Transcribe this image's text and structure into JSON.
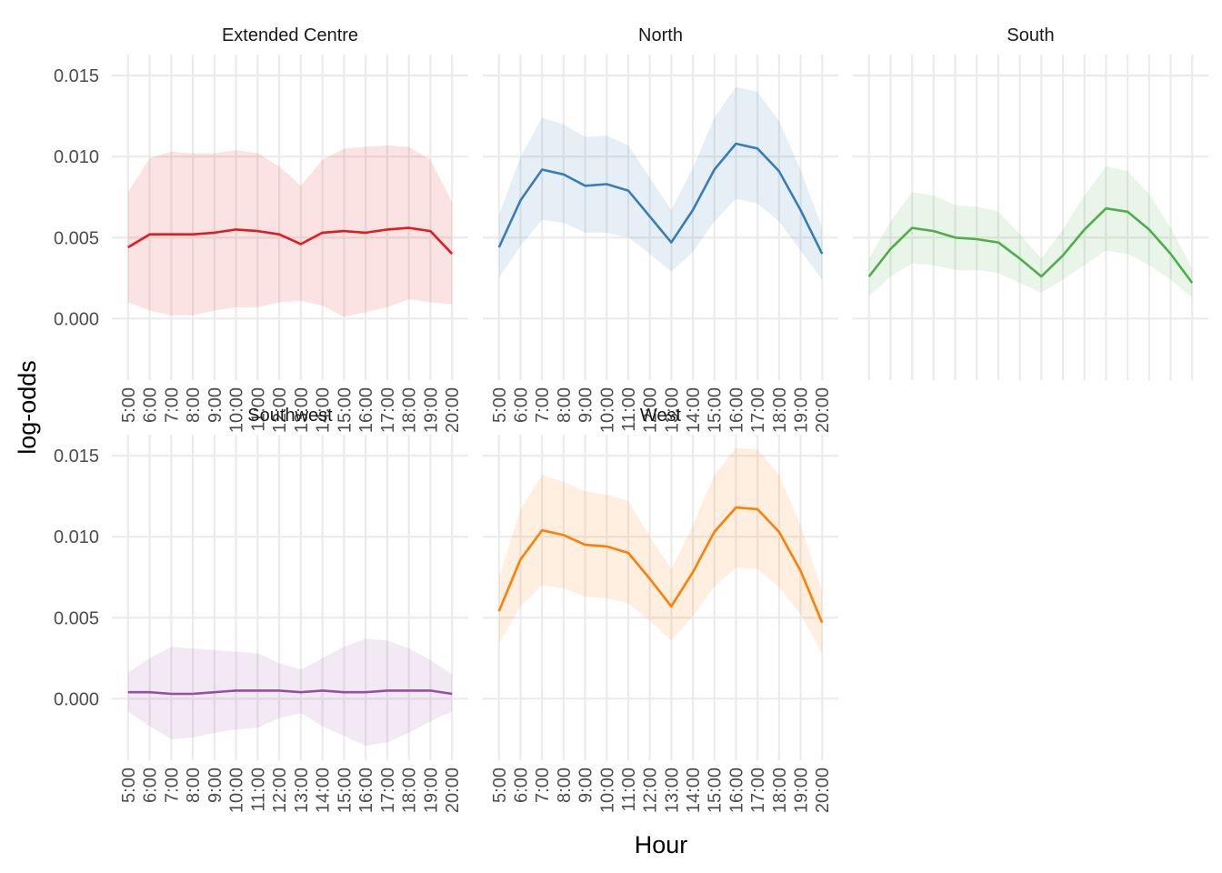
{
  "chart_data": {
    "type": "line",
    "subtype": "faceted line with confidence ribbons",
    "xlabel": "Hour",
    "ylabel": "log-odds",
    "x": [
      "5:00",
      "6:00",
      "7:00",
      "8:00",
      "9:00",
      "10:00",
      "11:00",
      "12:00",
      "13:00",
      "14:00",
      "15:00",
      "16:00",
      "17:00",
      "18:00",
      "19:00",
      "20:00"
    ],
    "ylim": [
      -0.0038,
      0.0163
    ],
    "yticks": [
      0.0,
      0.005,
      0.01,
      0.015
    ],
    "ytick_labels": [
      "0.000",
      "0.005",
      "0.010",
      "0.015"
    ],
    "grid": true,
    "legend": "none",
    "series": [
      {
        "name": "Extended Centre",
        "color": "#e41a1c",
        "values": [
          0.0044,
          0.0052,
          0.0052,
          0.0052,
          0.0053,
          0.0055,
          0.0054,
          0.0052,
          0.0046,
          0.0053,
          0.0054,
          0.0053,
          0.0055,
          0.0056,
          0.0054,
          0.004
        ],
        "lower": [
          0.001,
          0.0005,
          0.0002,
          0.0002,
          0.0005,
          0.0007,
          0.0007,
          0.001,
          0.0011,
          0.0008,
          0.0001,
          0.0004,
          0.0007,
          0.0012,
          0.001,
          0.0009
        ],
        "upper": [
          0.0078,
          0.0099,
          0.0103,
          0.0102,
          0.0102,
          0.0104,
          0.0102,
          0.0094,
          0.0082,
          0.0098,
          0.0105,
          0.0106,
          0.0107,
          0.0106,
          0.0098,
          0.0072
        ]
      },
      {
        "name": "North",
        "color": "#377eb8",
        "values": [
          0.0044,
          0.0073,
          0.0092,
          0.0089,
          0.0082,
          0.0083,
          0.0079,
          0.0063,
          0.0047,
          0.0067,
          0.0092,
          0.0108,
          0.0105,
          0.0091,
          0.0067,
          0.004
        ],
        "lower": [
          0.0025,
          0.0045,
          0.0061,
          0.0059,
          0.0053,
          0.0053,
          0.005,
          0.004,
          0.0029,
          0.0041,
          0.006,
          0.0074,
          0.0071,
          0.006,
          0.0042,
          0.0024
        ],
        "upper": [
          0.0064,
          0.01,
          0.0124,
          0.012,
          0.0112,
          0.0113,
          0.0107,
          0.0087,
          0.0067,
          0.0093,
          0.0124,
          0.0143,
          0.014,
          0.0122,
          0.0092,
          0.0056
        ]
      },
      {
        "name": "South",
        "color": "#4daf4a",
        "values": [
          0.0026,
          0.0043,
          0.0056,
          0.0054,
          0.005,
          0.0049,
          0.0047,
          0.0037,
          0.0026,
          0.0039,
          0.0055,
          0.0068,
          0.0066,
          0.0055,
          0.004,
          0.0022
        ],
        "lower": [
          0.0014,
          0.0026,
          0.0034,
          0.0033,
          0.003,
          0.003,
          0.0028,
          0.0022,
          0.0016,
          0.0024,
          0.0033,
          0.0042,
          0.004,
          0.0033,
          0.0024,
          0.0013
        ],
        "upper": [
          0.0037,
          0.006,
          0.0078,
          0.0076,
          0.007,
          0.0069,
          0.0066,
          0.0052,
          0.0037,
          0.0055,
          0.0076,
          0.0094,
          0.0091,
          0.0077,
          0.0056,
          0.0031
        ]
      },
      {
        "name": "Southwest",
        "color": "#984ea3",
        "values": [
          0.0004,
          0.0004,
          0.0003,
          0.0003,
          0.0004,
          0.0005,
          0.0005,
          0.0005,
          0.0004,
          0.0005,
          0.0004,
          0.0004,
          0.0005,
          0.0005,
          0.0005,
          0.0003
        ],
        "lower": [
          -0.0008,
          -0.0017,
          -0.0025,
          -0.0024,
          -0.0021,
          -0.0019,
          -0.0018,
          -0.0012,
          -0.0009,
          -0.0017,
          -0.0023,
          -0.0029,
          -0.0027,
          -0.0021,
          -0.0014,
          -0.0008
        ],
        "upper": [
          0.0016,
          0.0025,
          0.0032,
          0.0031,
          0.003,
          0.0029,
          0.0028,
          0.0022,
          0.0018,
          0.0025,
          0.0032,
          0.0037,
          0.0036,
          0.0031,
          0.0024,
          0.0015
        ]
      },
      {
        "name": "West",
        "color": "#ff7f00",
        "values": [
          0.0054,
          0.0086,
          0.0104,
          0.0101,
          0.0095,
          0.0094,
          0.009,
          0.0074,
          0.0057,
          0.0078,
          0.0103,
          0.0118,
          0.0117,
          0.0103,
          0.0079,
          0.0047
        ],
        "lower": [
          0.0034,
          0.0057,
          0.007,
          0.0068,
          0.0063,
          0.0062,
          0.0059,
          0.0048,
          0.0036,
          0.0051,
          0.0069,
          0.0081,
          0.008,
          0.0069,
          0.0052,
          0.0028
        ],
        "upper": [
          0.0075,
          0.0117,
          0.0138,
          0.0134,
          0.0128,
          0.0126,
          0.0122,
          0.01,
          0.008,
          0.0107,
          0.0138,
          0.0155,
          0.0154,
          0.0138,
          0.0107,
          0.0066
        ]
      }
    ]
  }
}
